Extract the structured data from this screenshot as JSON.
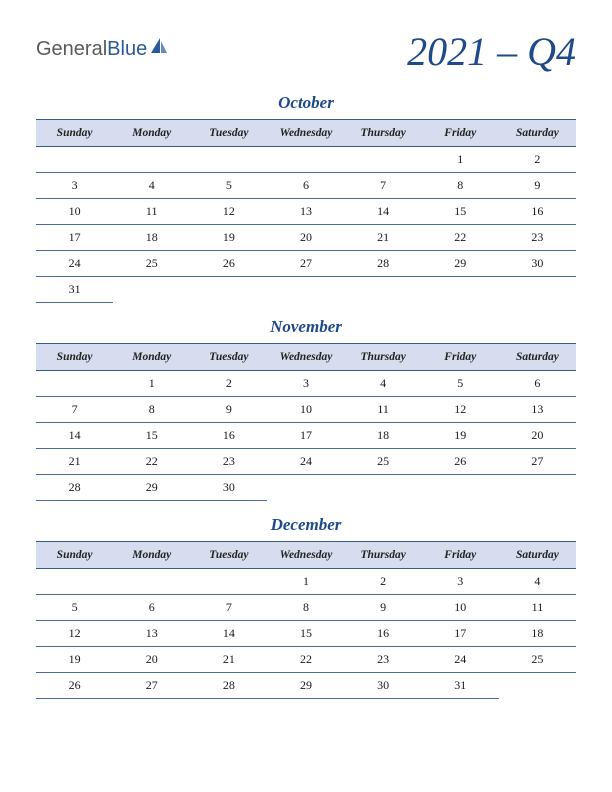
{
  "logo": {
    "text_gray": "General",
    "text_blue": "Blue"
  },
  "title": "2021 – Q4",
  "dayHeaders": [
    "Sunday",
    "Monday",
    "Tuesday",
    "Wednesday",
    "Thursday",
    "Friday",
    "Saturday"
  ],
  "style": {
    "header_bg": "#d5ddef",
    "border_color": "#4a6a9a",
    "accent_color": "#1e4a8a",
    "body_font": "Georgia, serif",
    "title_fontsize": 40,
    "month_fontsize": 17,
    "dayheader_fontsize": 11.5,
    "cell_fontsize": 12
  },
  "months": [
    {
      "name": "October",
      "weeks": [
        [
          "",
          "",
          "",
          "",
          "",
          "1",
          "2"
        ],
        [
          "3",
          "4",
          "5",
          "6",
          "7",
          "8",
          "9"
        ],
        [
          "10",
          "11",
          "12",
          "13",
          "14",
          "15",
          "16"
        ],
        [
          "17",
          "18",
          "19",
          "20",
          "21",
          "22",
          "23"
        ],
        [
          "24",
          "25",
          "26",
          "27",
          "28",
          "29",
          "30"
        ],
        [
          "31",
          "",
          "",
          "",
          "",
          "",
          ""
        ]
      ]
    },
    {
      "name": "November",
      "weeks": [
        [
          "",
          "1",
          "2",
          "3",
          "4",
          "5",
          "6"
        ],
        [
          "7",
          "8",
          "9",
          "10",
          "11",
          "12",
          "13"
        ],
        [
          "14",
          "15",
          "16",
          "17",
          "18",
          "19",
          "20"
        ],
        [
          "21",
          "22",
          "23",
          "24",
          "25",
          "26",
          "27"
        ],
        [
          "28",
          "29",
          "30",
          "",
          "",
          "",
          ""
        ]
      ]
    },
    {
      "name": "December",
      "weeks": [
        [
          "",
          "",
          "",
          "1",
          "2",
          "3",
          "4"
        ],
        [
          "5",
          "6",
          "7",
          "8",
          "9",
          "10",
          "11"
        ],
        [
          "12",
          "13",
          "14",
          "15",
          "16",
          "17",
          "18"
        ],
        [
          "19",
          "20",
          "21",
          "22",
          "23",
          "24",
          "25"
        ],
        [
          "26",
          "27",
          "28",
          "29",
          "30",
          "31",
          ""
        ]
      ]
    }
  ]
}
